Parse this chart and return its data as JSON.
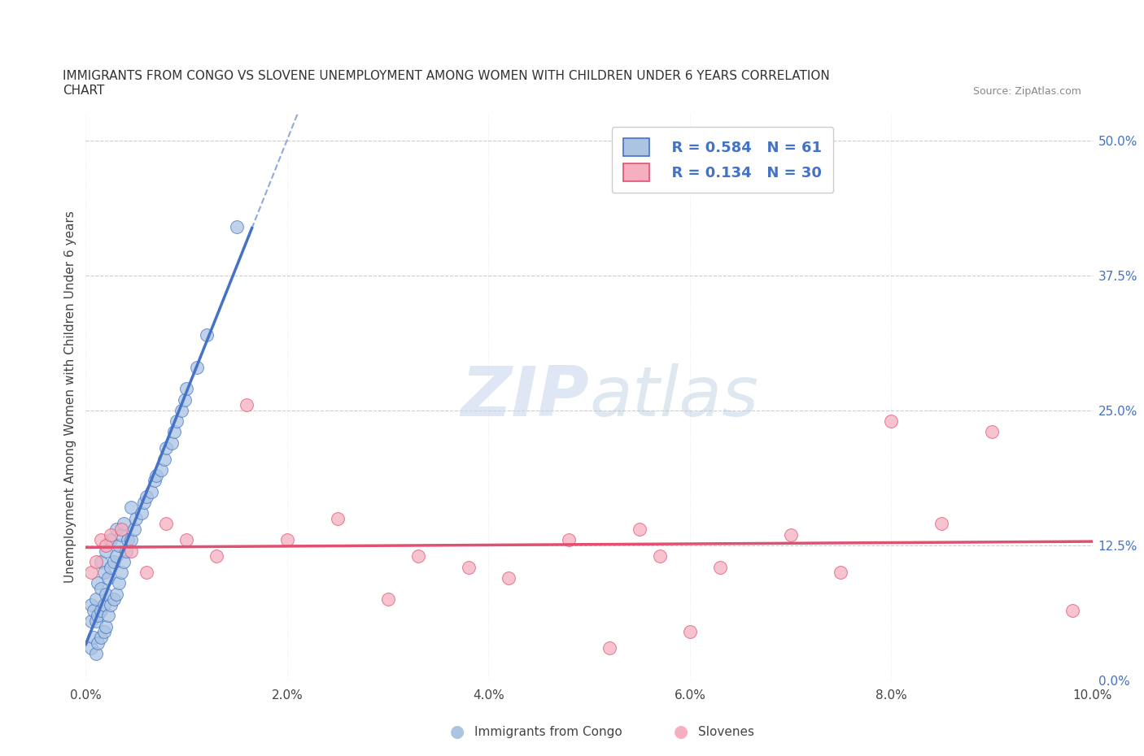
{
  "title_line1": "IMMIGRANTS FROM CONGO VS SLOVENE UNEMPLOYMENT AMONG WOMEN WITH CHILDREN UNDER 6 YEARS CORRELATION",
  "title_line2": "CHART",
  "source_text": "Source: ZipAtlas.com",
  "ylabel": "Unemployment Among Women with Children Under 6 years",
  "xlim": [
    0.0,
    0.1
  ],
  "ylim": [
    0.0,
    0.525
  ],
  "xticks": [
    0.0,
    0.02,
    0.04,
    0.06,
    0.08,
    0.1
  ],
  "xticklabels": [
    "0.0%",
    "2.0%",
    "4.0%",
    "6.0%",
    "8.0%",
    "10.0%"
  ],
  "yticks_right": [
    0.0,
    0.125,
    0.25,
    0.375,
    0.5
  ],
  "yticklabels_right": [
    "0.0%",
    "12.5%",
    "25.0%",
    "37.5%",
    "50.0%"
  ],
  "legend_r1": "R = 0.584",
  "legend_n1": "N = 61",
  "legend_r2": "R = 0.134",
  "legend_n2": "N = 30",
  "color_congo": "#aac4e2",
  "color_slovene": "#f5afc0",
  "line_color_congo": "#4472c4",
  "line_color_slovene": "#e05070",
  "watermark_zip": "ZIP",
  "watermark_atlas": "atlas",
  "background_color": "#ffffff",
  "congo_x": [
    0.0005,
    0.0005,
    0.0005,
    0.0008,
    0.0008,
    0.001,
    0.001,
    0.001,
    0.0012,
    0.0012,
    0.0012,
    0.0015,
    0.0015,
    0.0015,
    0.0015,
    0.0018,
    0.0018,
    0.0018,
    0.002,
    0.002,
    0.002,
    0.0022,
    0.0022,
    0.0025,
    0.0025,
    0.0025,
    0.0028,
    0.0028,
    0.003,
    0.003,
    0.003,
    0.0033,
    0.0033,
    0.0035,
    0.0035,
    0.0038,
    0.0038,
    0.004,
    0.0042,
    0.0045,
    0.0045,
    0.0048,
    0.005,
    0.0055,
    0.0058,
    0.006,
    0.0065,
    0.0068,
    0.007,
    0.0075,
    0.0078,
    0.008,
    0.0085,
    0.0088,
    0.009,
    0.0095,
    0.0098,
    0.01,
    0.011,
    0.012,
    0.015
  ],
  "congo_y": [
    0.03,
    0.055,
    0.07,
    0.04,
    0.065,
    0.025,
    0.055,
    0.075,
    0.035,
    0.06,
    0.09,
    0.04,
    0.065,
    0.085,
    0.11,
    0.045,
    0.07,
    0.1,
    0.05,
    0.08,
    0.12,
    0.06,
    0.095,
    0.07,
    0.105,
    0.13,
    0.075,
    0.11,
    0.08,
    0.115,
    0.14,
    0.09,
    0.125,
    0.1,
    0.135,
    0.11,
    0.145,
    0.12,
    0.13,
    0.13,
    0.16,
    0.14,
    0.15,
    0.155,
    0.165,
    0.17,
    0.175,
    0.185,
    0.19,
    0.195,
    0.205,
    0.215,
    0.22,
    0.23,
    0.24,
    0.25,
    0.26,
    0.27,
    0.29,
    0.32,
    0.42
  ],
  "slovene_x": [
    0.0005,
    0.001,
    0.0015,
    0.002,
    0.0025,
    0.0035,
    0.0045,
    0.006,
    0.008,
    0.01,
    0.013,
    0.016,
    0.02,
    0.025,
    0.03,
    0.033,
    0.038,
    0.042,
    0.048,
    0.052,
    0.055,
    0.057,
    0.06,
    0.063,
    0.07,
    0.075,
    0.08,
    0.085,
    0.09,
    0.098
  ],
  "slovene_y": [
    0.1,
    0.11,
    0.13,
    0.125,
    0.135,
    0.14,
    0.12,
    0.1,
    0.145,
    0.13,
    0.115,
    0.255,
    0.13,
    0.15,
    0.075,
    0.115,
    0.105,
    0.095,
    0.13,
    0.03,
    0.14,
    0.115,
    0.045,
    0.105,
    0.135,
    0.1,
    0.24,
    0.145,
    0.23,
    0.065
  ]
}
